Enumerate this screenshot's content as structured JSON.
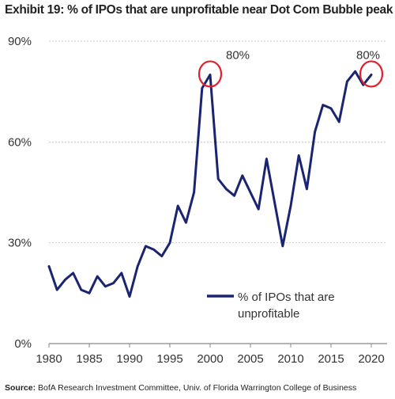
{
  "header": {
    "title": "Exhibit 19: % of IPOs that are unprofitable near Dot Com Bubble peak"
  },
  "footer": {
    "source_label": "Source:",
    "source_text": " BofA Research Investment Committee, Univ. of Florida Warrington College of Business"
  },
  "chart_data": {
    "type": "line",
    "title": "Exhibit 19: % of IPOs that are unprofitable near Dot Com Bubble peak",
    "xlabel": "",
    "ylabel": "",
    "xlim": [
      1980,
      2020
    ],
    "ylim": [
      0,
      90
    ],
    "x_ticks": [
      1980,
      1985,
      1990,
      1995,
      2000,
      2005,
      2010,
      2015,
      2020
    ],
    "y_ticks": [
      0,
      30,
      60,
      90
    ],
    "y_tick_labels": [
      "0%",
      "30%",
      "60%",
      "90%"
    ],
    "grid": "horizontal",
    "line_color": "#1a2470",
    "highlight_color": "#e0202a",
    "legend": {
      "placement": "center-right",
      "label_line1": "% of IPOs that are",
      "label_line2": "unprofitable"
    },
    "annotations": [
      {
        "x": 2000,
        "y": 80,
        "label": "80%"
      },
      {
        "x": 2020,
        "y": 80,
        "label": "80%"
      }
    ],
    "series": [
      {
        "name": "% of IPOs that are unprofitable",
        "x": [
          1980,
          1981,
          1982,
          1983,
          1984,
          1985,
          1986,
          1987,
          1988,
          1989,
          1990,
          1991,
          1992,
          1993,
          1994,
          1995,
          1996,
          1997,
          1998,
          1999,
          2000,
          2001,
          2002,
          2003,
          2004,
          2005,
          2006,
          2007,
          2008,
          2009,
          2010,
          2011,
          2012,
          2013,
          2014,
          2015,
          2016,
          2017,
          2018,
          2019,
          2020
        ],
        "values": [
          23,
          16,
          19,
          21,
          16,
          15,
          20,
          17,
          18,
          21,
          14,
          23,
          29,
          28,
          26,
          30,
          41,
          36,
          45,
          76,
          80,
          49,
          46,
          44,
          50,
          45,
          40,
          55,
          42,
          29,
          41,
          56,
          46,
          63,
          71,
          70,
          66,
          78,
          81,
          77,
          80
        ]
      }
    ]
  }
}
